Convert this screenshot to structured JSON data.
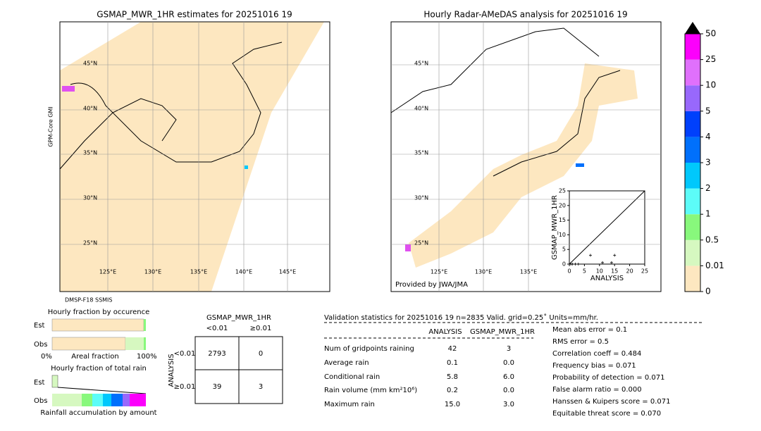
{
  "maps": [
    {
      "title": "GSMAP_MWR_1HR estimates for 20251016 19",
      "lat_labels": [
        "45°N",
        "40°N",
        "35°N",
        "30°N",
        "25°N"
      ],
      "lon_labels": [
        "125°E",
        "130°E",
        "135°E",
        "140°E",
        "145°E"
      ],
      "sensor_top": "GPM-Core GMI",
      "sensor_bottom": "DMSP-F18 SSMIS"
    },
    {
      "title": "Hourly Radar-AMeDAS analysis for 20251016 19",
      "lat_labels": [
        "45°N",
        "40°N",
        "35°N",
        "30°N",
        "25°N"
      ],
      "lon_labels": [
        "125°E",
        "130°E",
        "135°E"
      ],
      "credit": "Provided by JWA/JMA"
    }
  ],
  "colorbar": {
    "ticks": [
      0,
      0.01,
      0.5,
      1,
      2,
      3,
      4,
      5,
      10,
      25,
      50
    ],
    "colors": [
      "#fde7c0",
      "#d6f8c0",
      "#88f87c",
      "#5cfcf8",
      "#00c8fc",
      "#0070fc",
      "#0040fc",
      "#9868fc",
      "#e070fc",
      "#fc00fc",
      "#c8963c"
    ]
  },
  "chart_data": {
    "type": "scatter",
    "xlabel": "ANALYSIS",
    "ylabel": "GSMAP_MWR_1HR",
    "x": [
      0,
      0.5,
      1,
      2,
      3,
      7,
      11,
      14,
      15
    ],
    "y": [
      0,
      0,
      0,
      0,
      0,
      3,
      0.5,
      0.5,
      3
    ],
    "xlim": [
      0,
      25
    ],
    "ylim": [
      0,
      25
    ],
    "xticks": [
      0,
      5,
      10,
      15,
      20,
      25
    ],
    "yticks": [
      0,
      5,
      10,
      15,
      20,
      25
    ],
    "color": "#000000"
  },
  "fraction": {
    "title_occurence": "Hourly fraction by occurence",
    "est": "Est",
    "obs": "Obs",
    "axis_left": "0%",
    "axis_label": "Areal fraction",
    "axis_right": "100%",
    "title_total": "Hourly fraction of total rain",
    "est2": "Est",
    "obs2": "Obs",
    "axis_label2": "Rainfall accumulation by amount"
  },
  "contingency": {
    "title": "GSMAP_MWR_1HR",
    "col_headers": [
      "<0.01",
      "≥0.01"
    ],
    "row_title": "ANALYSIS",
    "row_headers": [
      "<0.01",
      "≥0.01"
    ],
    "cells": [
      [
        "2793",
        "0"
      ],
      [
        "39",
        "3"
      ]
    ]
  },
  "validation": {
    "header": "Validation statistics for 20251016 19  n=2835 Valid. grid=0.25˚ Units=mm/hr.",
    "columns": [
      "ANALYSIS",
      "GSMAP_MWR_1HR"
    ],
    "rows": [
      [
        "Num of gridpoints raining",
        "42",
        "3"
      ],
      [
        "Average rain",
        "0.1",
        "0.0"
      ],
      [
        "Conditional rain",
        "5.8",
        "6.0"
      ],
      [
        "Rain volume (mm km²10⁶)",
        "0.2",
        "0.0"
      ],
      [
        "Maximum rain",
        "15.0",
        "3.0"
      ]
    ],
    "scores": [
      "Mean abs error =    0.1",
      "RMS error =    0.5",
      "Correlation coeff =  0.484",
      "Frequency bias =  0.071",
      "Probability of detection =  0.071",
      "False alarm ratio =  0.000",
      "Hanssen & Kuipers score =  0.071",
      "Equitable threat score =  0.070"
    ]
  }
}
